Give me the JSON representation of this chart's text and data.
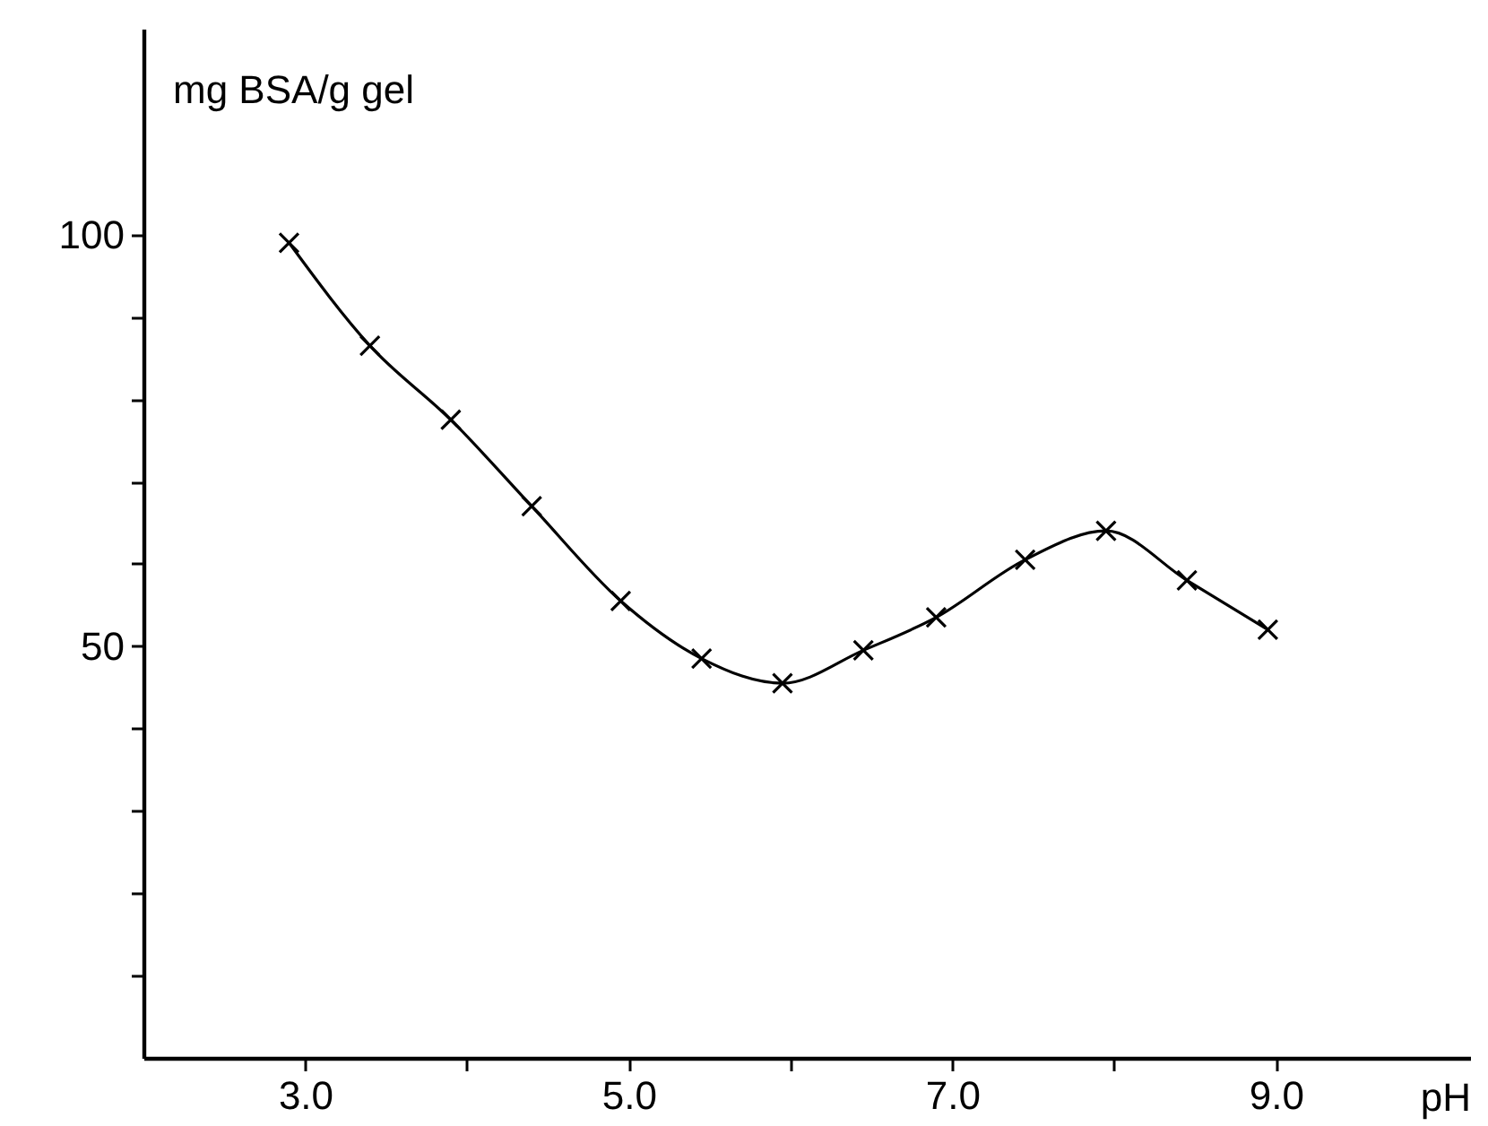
{
  "chart_data": {
    "type": "line",
    "xlabel": "pH",
    "ylabel": "mg BSA/g gel",
    "color": "#000000",
    "marker": "cross",
    "grid": false,
    "x": [
      2.9,
      3.4,
      3.9,
      4.4,
      4.95,
      5.45,
      5.95,
      6.45,
      6.9,
      7.45,
      7.95,
      8.45,
      8.95
    ],
    "values": [
      99,
      86.5,
      77.5,
      67,
      55.5,
      48.5,
      45.5,
      49.5,
      53.5,
      60.5,
      64,
      58,
      52
    ],
    "xlim": [
      2,
      10.2
    ],
    "xticks": [
      {
        "value": 3,
        "label": "3.0"
      },
      {
        "value": 4,
        "label": null
      },
      {
        "value": 5,
        "label": "5.0"
      },
      {
        "value": 6,
        "label": null
      },
      {
        "value": 7,
        "label": "7.0"
      },
      {
        "value": 8,
        "label": null
      },
      {
        "value": 9,
        "label": "9.0"
      }
    ],
    "ylim": [
      0,
      125
    ],
    "yticks": [
      {
        "value": 10,
        "label": null
      },
      {
        "value": 20,
        "label": null
      },
      {
        "value": 30,
        "label": null
      },
      {
        "value": 40,
        "label": null
      },
      50,
      {
        "value": 60,
        "label": null
      },
      {
        "value": 70,
        "label": null
      },
      {
        "value": 80,
        "label": null
      },
      {
        "value": 90,
        "label": null
      },
      100
    ]
  }
}
